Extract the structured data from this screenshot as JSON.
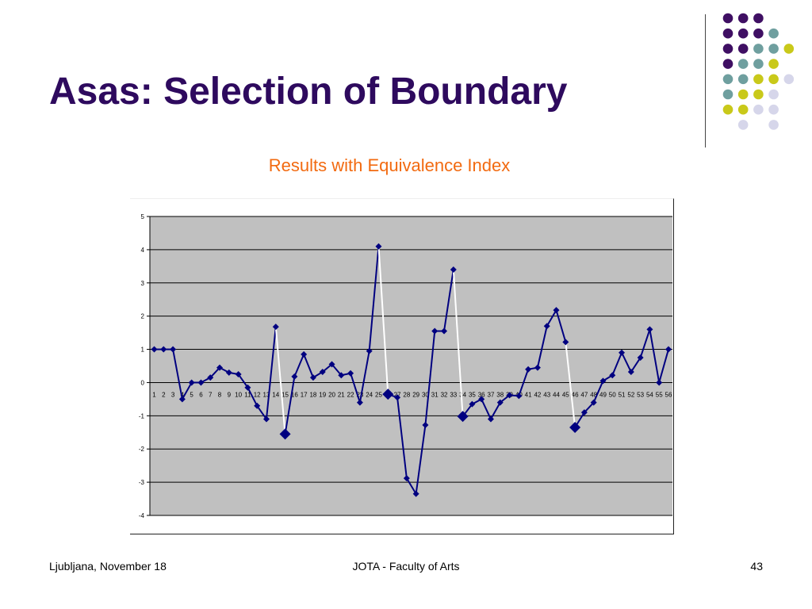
{
  "slide": {
    "title": "Asas: Selection of Boundary",
    "subtitle": "Results with Equivalence Index",
    "footer_left": "Ljubljana, November 18",
    "footer_center": "JOTA - Faculty of Arts",
    "page_number": "43"
  },
  "colors": {
    "title": "#2e0a5e",
    "subtitle": "#f26a10",
    "plot_background": "#c0c0c0",
    "series_line": "#000080",
    "highlight_segment": "#ffffff",
    "decor_purple": "#3f0f63",
    "decor_teal": "#6f9f9f",
    "decor_yellow": "#c9c91a",
    "decor_lavender": "#d6d6ea"
  },
  "decor_dots": [
    [
      "purple",
      "purple",
      "purple",
      "",
      ""
    ],
    [
      "purple",
      "purple",
      "purple",
      "teal",
      ""
    ],
    [
      "purple",
      "purple",
      "teal",
      "teal",
      "yellow"
    ],
    [
      "purple",
      "teal",
      "teal",
      "yellow",
      ""
    ],
    [
      "teal",
      "teal",
      "yellow",
      "yellow",
      "lavender"
    ],
    [
      "teal",
      "yellow",
      "yellow",
      "lavender",
      ""
    ],
    [
      "yellow",
      "yellow",
      "lavender",
      "lavender",
      ""
    ],
    [
      "",
      "lavender",
      "",
      "lavender",
      ""
    ]
  ],
  "chart_data": {
    "type": "line",
    "title": "",
    "xlabel": "",
    "ylabel": "",
    "ylim": [
      -4,
      5
    ],
    "y_ticks": [
      -4,
      -3,
      -2,
      -1,
      0,
      1,
      2,
      3,
      4,
      5
    ],
    "grid": true,
    "legend": "none",
    "categories": [
      "1",
      "2",
      "3",
      "4",
      "5",
      "6",
      "7",
      "8",
      "9",
      "10",
      "11",
      "12",
      "13",
      "14",
      "15",
      "16",
      "17",
      "18",
      "19",
      "20",
      "21",
      "22",
      "23",
      "24",
      "25",
      "26",
      "27",
      "28",
      "29",
      "30",
      "31",
      "32",
      "33",
      "34",
      "35",
      "36",
      "37",
      "38",
      "39",
      "40",
      "41",
      "42",
      "43",
      "44",
      "45",
      "46",
      "47",
      "48",
      "49",
      "50",
      "51",
      "52",
      "53",
      "54",
      "55",
      "56"
    ],
    "series": [
      {
        "values": [
          1.0,
          1.0,
          1.0,
          -0.5,
          0.0,
          0.0,
          0.15,
          0.45,
          0.3,
          0.25,
          -0.15,
          -0.7,
          -1.1,
          1.68,
          -1.55,
          0.18,
          0.85,
          0.15,
          0.32,
          0.55,
          0.22,
          0.28,
          -0.6,
          0.95,
          4.1,
          -0.35,
          -0.45,
          -2.88,
          -3.35,
          -1.28,
          1.55,
          1.55,
          3.4,
          -1.02,
          -0.65,
          -0.5,
          -1.1,
          -0.6,
          -0.38,
          -0.4,
          0.4,
          0.45,
          1.7,
          2.18,
          1.22,
          -1.35,
          -0.9,
          -0.6,
          0.05,
          0.22,
          0.9,
          0.32,
          0.75,
          1.6,
          0.0,
          1.0
        ]
      }
    ],
    "highlighted_segments": [
      [
        14,
        15
      ],
      [
        25,
        26
      ],
      [
        33,
        34
      ],
      [
        45,
        46
      ]
    ],
    "large_markers": [
      15,
      26,
      34,
      46
    ]
  }
}
